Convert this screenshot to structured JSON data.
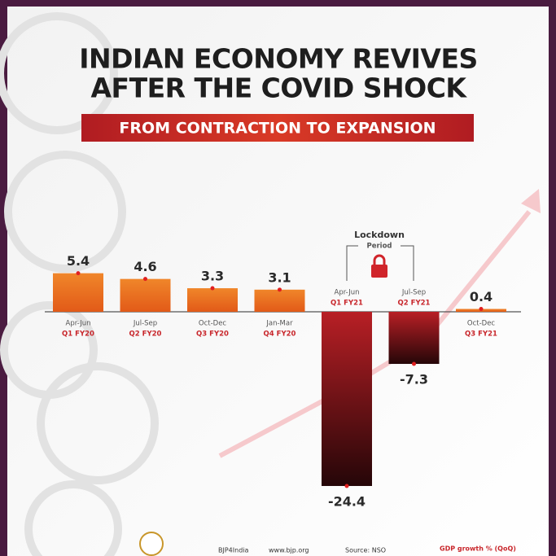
{
  "chart_data": {
    "type": "bar",
    "title": [
      "INDIAN ECONOMY REVIVES",
      "AFTER THE COVID SHOCK"
    ],
    "subtitle": "FROM CONTRACTION TO EXPANSION",
    "categories": [
      "Apr-Jun",
      "Jul-Sep",
      "Oct-Dec",
      "Jan-Mar",
      "Apr-Jun",
      "Jul-Sep",
      "Oct-Dec"
    ],
    "category_sublabels": [
      "Q1 FY20",
      "Q2 FY20",
      "Q3 FY20",
      "Q4 FY20",
      "Q1 FY21",
      "Q2 FY21",
      "Q3 FY21"
    ],
    "values": [
      5.4,
      4.6,
      3.3,
      3.1,
      -24.4,
      -7.3,
      0.4
    ],
    "colors": {
      "positive": "#f0862a",
      "negative": "#b81f25"
    },
    "annotation": {
      "text": "Lockdown",
      "subtext": "Period"
    },
    "ylabel": "GDP growth % (QoQ)",
    "footer": {
      "handle": "BJP4India",
      "website": "www.bjp.org",
      "source": "Source: NSO"
    }
  }
}
